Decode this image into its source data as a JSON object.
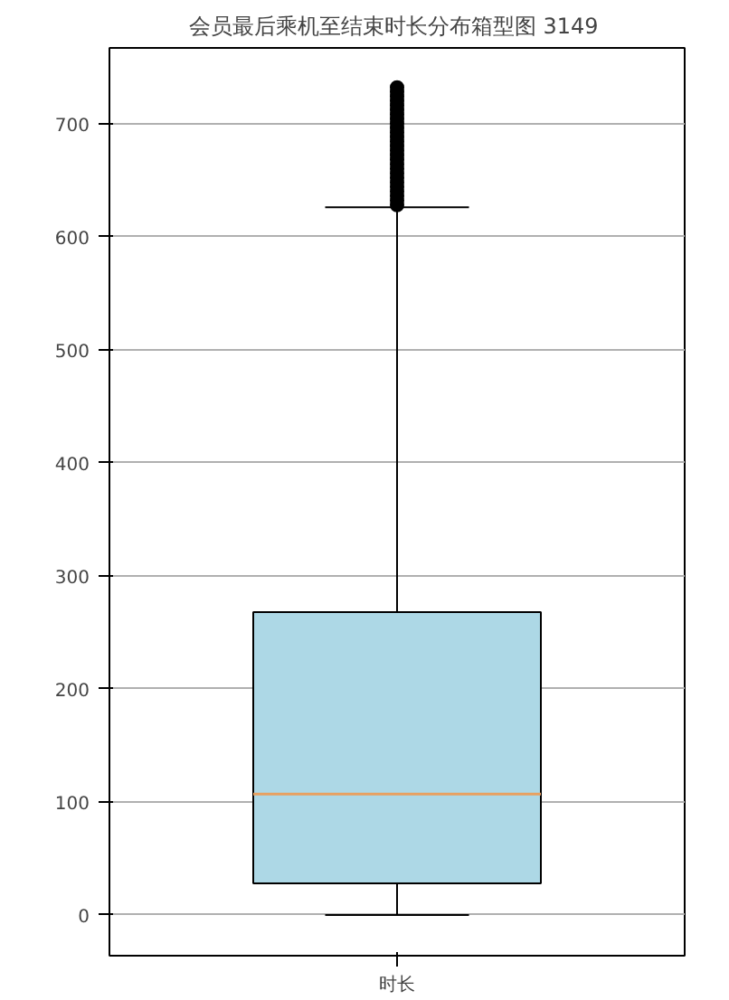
{
  "chart_data": {
    "type": "box",
    "title": "会员最后乘机至结束时长分布箱型图  3149",
    "categories": [
      "时长"
    ],
    "boxes": [
      {
        "low": 0,
        "q1": 28,
        "median": 107,
        "q3": 268,
        "high": 626,
        "outliers": [
          628,
          632,
          636,
          640,
          644,
          648,
          652,
          656,
          660,
          664,
          668,
          672,
          676,
          680,
          684,
          688,
          692,
          696,
          700,
          704,
          708,
          712,
          716,
          720,
          724,
          728,
          732
        ]
      }
    ],
    "color": "#add8e6",
    "ylim": [
      -36,
      767
    ],
    "yticks": [
      0,
      100,
      200,
      300,
      400,
      500,
      600,
      700
    ],
    "grid": "y"
  }
}
